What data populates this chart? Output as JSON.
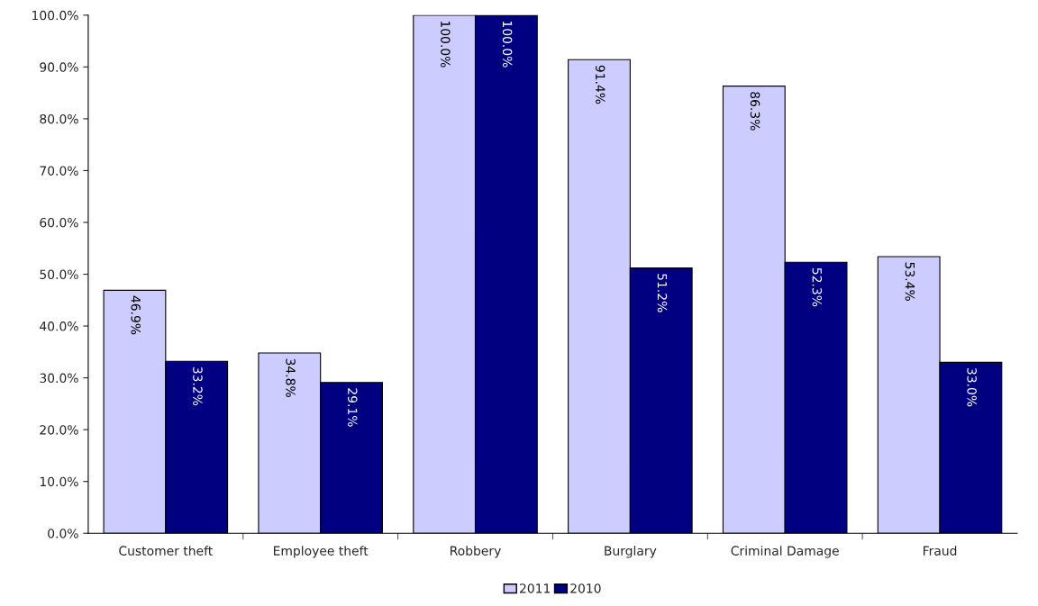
{
  "chart_data": {
    "type": "bar",
    "categories": [
      "Customer theft",
      "Employee theft",
      "Robbery",
      "Burglary",
      "Criminal Damage",
      "Fraud"
    ],
    "series": [
      {
        "name": "2011",
        "color": "#ccccff",
        "values": [
          46.9,
          34.8,
          100.0,
          91.4,
          86.3,
          53.4
        ],
        "value_labels": [
          "46.9%",
          "34.8%",
          "100.0%",
          "91.4%",
          "86.3%",
          "53.4%"
        ]
      },
      {
        "name": "2010",
        "color": "#000080",
        "values": [
          33.2,
          29.1,
          100.0,
          51.2,
          52.3,
          33.0
        ],
        "value_labels": [
          "33.2%",
          "29.1%",
          "100.0%",
          "51.2%",
          "52.3%",
          "33.0%"
        ]
      }
    ],
    "ylim": [
      0,
      100
    ],
    "yticks": [
      {
        "value": 0,
        "label": "0.0%"
      },
      {
        "value": 10,
        "label": "10.0%"
      },
      {
        "value": 20,
        "label": "20.0%"
      },
      {
        "value": 30,
        "label": "30.0%"
      },
      {
        "value": 40,
        "label": "40.0%"
      },
      {
        "value": 50,
        "label": "50.0%"
      },
      {
        "value": 60,
        "label": "60.0%"
      },
      {
        "value": 70,
        "label": "70.0%"
      },
      {
        "value": 80,
        "label": "80.0%"
      },
      {
        "value": 90,
        "label": "90.0%"
      },
      {
        "value": 100,
        "label": "100.0%"
      }
    ],
    "grid": false,
    "legend": "bottom"
  }
}
